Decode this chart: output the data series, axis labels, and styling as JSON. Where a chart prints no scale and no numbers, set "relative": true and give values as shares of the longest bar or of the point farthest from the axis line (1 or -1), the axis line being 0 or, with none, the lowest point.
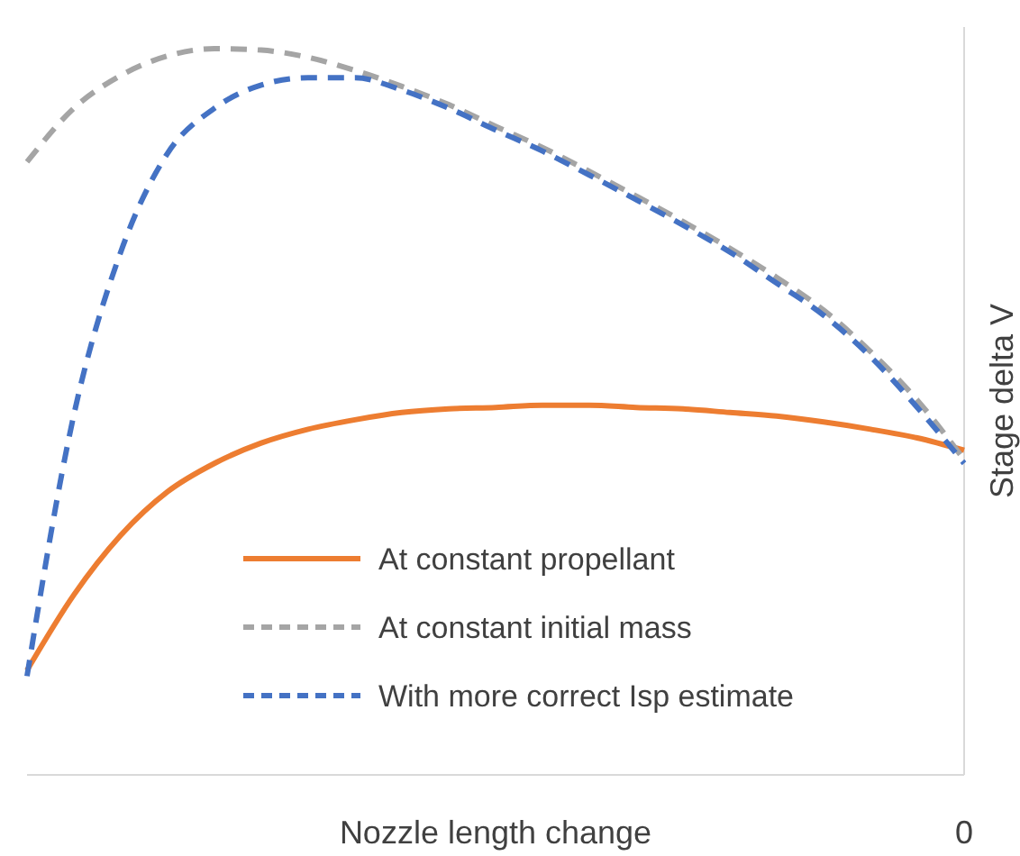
{
  "chart_data": {
    "type": "line",
    "relative": true,
    "xlabel": "Nozzle length change",
    "ylabel": "Stage delta V",
    "annotations": [
      "0"
    ],
    "legend": "bottom",
    "marker": "none",
    "categories": [
      null,
      null,
      null,
      null,
      null,
      null,
      null,
      null,
      null,
      null,
      null,
      null,
      null,
      null,
      null,
      null,
      null,
      null,
      null,
      null,
      null
    ],
    "series": [
      {
        "name": "At constant propellant",
        "color": "#ed7d31",
        "line_style": "solid",
        "values": [
          0.144,
          0.248,
          0.33,
          0.39,
          0.429,
          0.457,
          0.476,
          0.489,
          0.499,
          0.504,
          0.506,
          0.509,
          0.509,
          0.506,
          0.504,
          0.499,
          0.494,
          0.486,
          0.476,
          0.464,
          0.447
        ]
      },
      {
        "name": "At constant initial mass",
        "color": "#a5a5a5",
        "line_style": "dashed",
        "values": [
          0.844,
          0.918,
          0.963,
          0.99,
          1.0,
          0.998,
          0.988,
          0.97,
          0.948,
          0.923,
          0.893,
          0.864,
          0.831,
          0.797,
          0.762,
          0.725,
          0.685,
          0.64,
          0.583,
          0.516,
          0.434
        ]
      },
      {
        "name": "With more correct Isp estimate",
        "color": "#4472c4",
        "line_style": "dashed",
        "values": [
          0.136,
          0.496,
          0.72,
          0.856,
          0.918,
          0.95,
          0.96,
          0.96,
          0.943,
          0.918,
          0.888,
          0.859,
          0.826,
          0.792,
          0.757,
          0.72,
          0.677,
          0.633,
          0.576,
          0.506,
          0.429
        ]
      }
    ]
  }
}
